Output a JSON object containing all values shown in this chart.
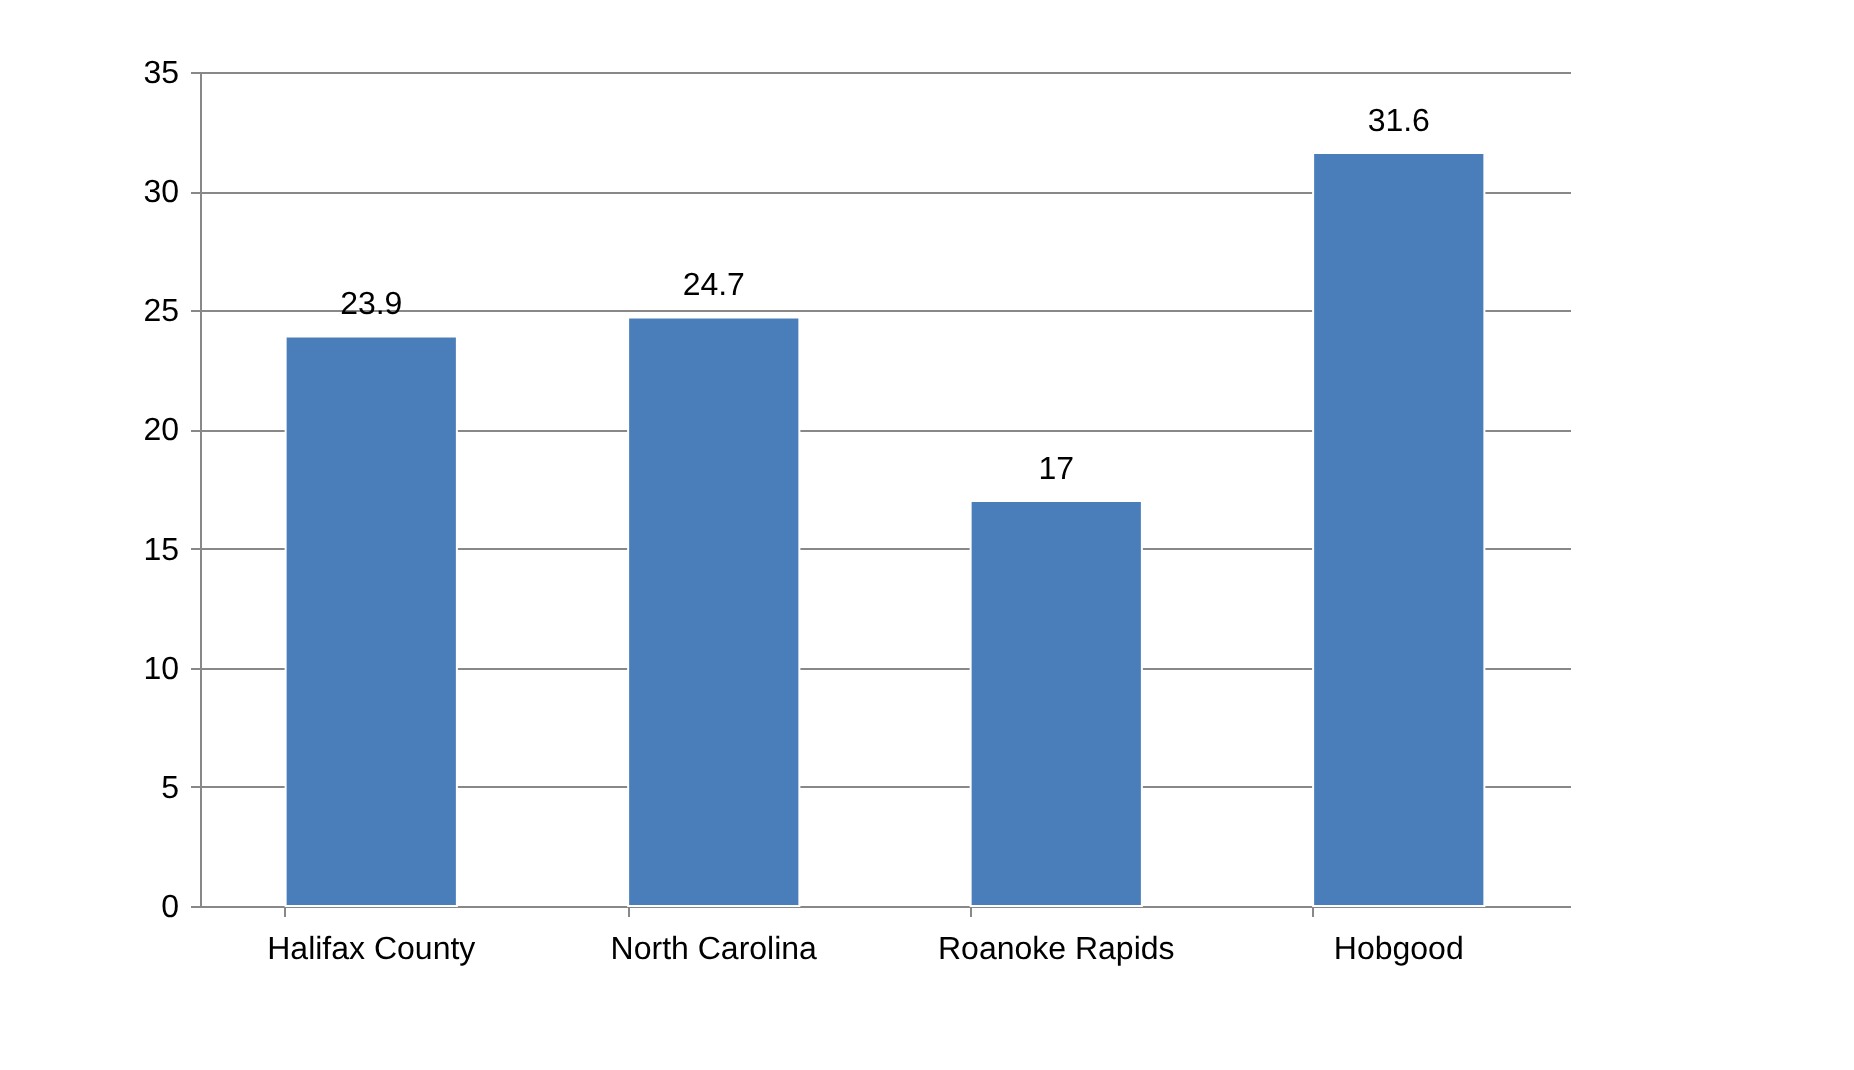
{
  "chart_data": {
    "type": "bar",
    "categories": [
      "Halifax County",
      "North Carolina",
      "Roanoke Rapids",
      "Hobgood"
    ],
    "values": [
      23.9,
      24.7,
      17,
      31.6
    ],
    "color": "#4a7ebb",
    "ylim": [
      0,
      35
    ],
    "yticks": [
      0,
      5,
      10,
      15,
      20,
      25,
      30,
      35
    ],
    "grid": "y",
    "data_labels": true
  }
}
